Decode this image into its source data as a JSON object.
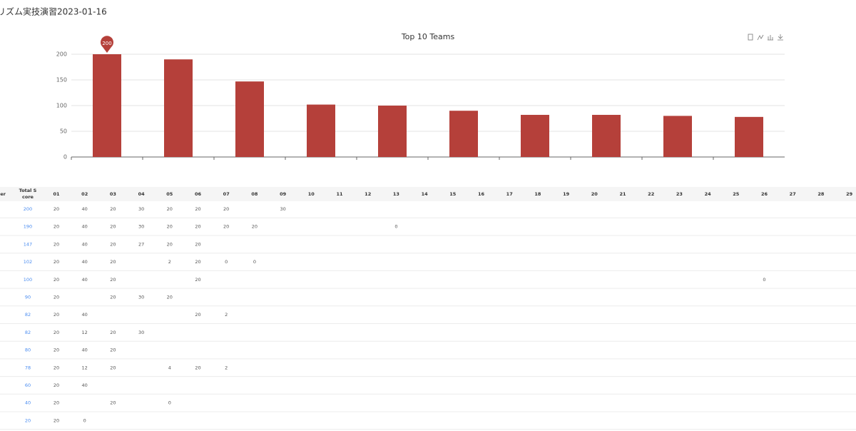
{
  "page_title": "リズム実技演習2023-01-16",
  "chart_data": {
    "type": "bar",
    "title": "Top 10 Teams",
    "categories": [
      null,
      null,
      null,
      null,
      null,
      null,
      null,
      null,
      null,
      null
    ],
    "values": [
      200,
      190,
      147,
      102,
      100,
      90,
      82,
      82,
      80,
      78
    ],
    "color": "#b5403a",
    "ylim": [
      0,
      200
    ],
    "yticks": [
      0,
      50,
      100,
      150,
      200
    ],
    "grid": true,
    "mark_point": 200
  },
  "table": {
    "header": {
      "number": "ber",
      "total": [
        "Total S",
        "core"
      ],
      "days": [
        "01",
        "02",
        "03",
        "04",
        "05",
        "06",
        "07",
        "08",
        "09",
        "10",
        "11",
        "12",
        "13",
        "14",
        "15",
        "16",
        "17",
        "18",
        "19",
        "20",
        "21",
        "22",
        "23",
        "24",
        "25",
        "26",
        "27",
        "28",
        "29"
      ]
    },
    "rows": [
      {
        "total": "200",
        "cells": {
          "0": "20",
          "1": "40",
          "2": "20",
          "3": "30",
          "4": "20",
          "5": "20",
          "6": "20",
          "8": "30"
        }
      },
      {
        "total": "190",
        "cells": {
          "0": "20",
          "1": "40",
          "2": "20",
          "3": "30",
          "4": "20",
          "5": "20",
          "6": "20",
          "7": "20",
          "12": "0"
        }
      },
      {
        "total": "147",
        "cells": {
          "0": "20",
          "1": "40",
          "2": "20",
          "3": "27",
          "4": "20",
          "5": "20"
        }
      },
      {
        "total": "102",
        "cells": {
          "0": "20",
          "1": "40",
          "2": "20",
          "4": "2",
          "5": "20",
          "6": "0",
          "7": "0"
        }
      },
      {
        "total": "100",
        "cells": {
          "0": "20",
          "1": "40",
          "2": "20",
          "5": "20",
          "25": "0"
        }
      },
      {
        "total": "90",
        "cells": {
          "0": "20",
          "2": "20",
          "3": "30",
          "4": "20"
        }
      },
      {
        "total": "82",
        "cells": {
          "0": "20",
          "1": "40",
          "5": "20",
          "6": "2"
        }
      },
      {
        "total": "82",
        "cells": {
          "0": "20",
          "1": "12",
          "2": "20",
          "3": "30"
        }
      },
      {
        "total": "80",
        "cells": {
          "0": "20",
          "1": "40",
          "2": "20"
        }
      },
      {
        "total": "78",
        "cells": {
          "0": "20",
          "1": "12",
          "2": "20",
          "4": "4",
          "5": "20",
          "6": "2"
        }
      },
      {
        "total": "60",
        "cells": {
          "0": "20",
          "1": "40"
        }
      },
      {
        "total": "40",
        "cells": {
          "0": "20",
          "2": "20",
          "4": "0"
        }
      },
      {
        "total": "20",
        "cells": {
          "0": "20",
          "1": "0"
        }
      }
    ]
  }
}
